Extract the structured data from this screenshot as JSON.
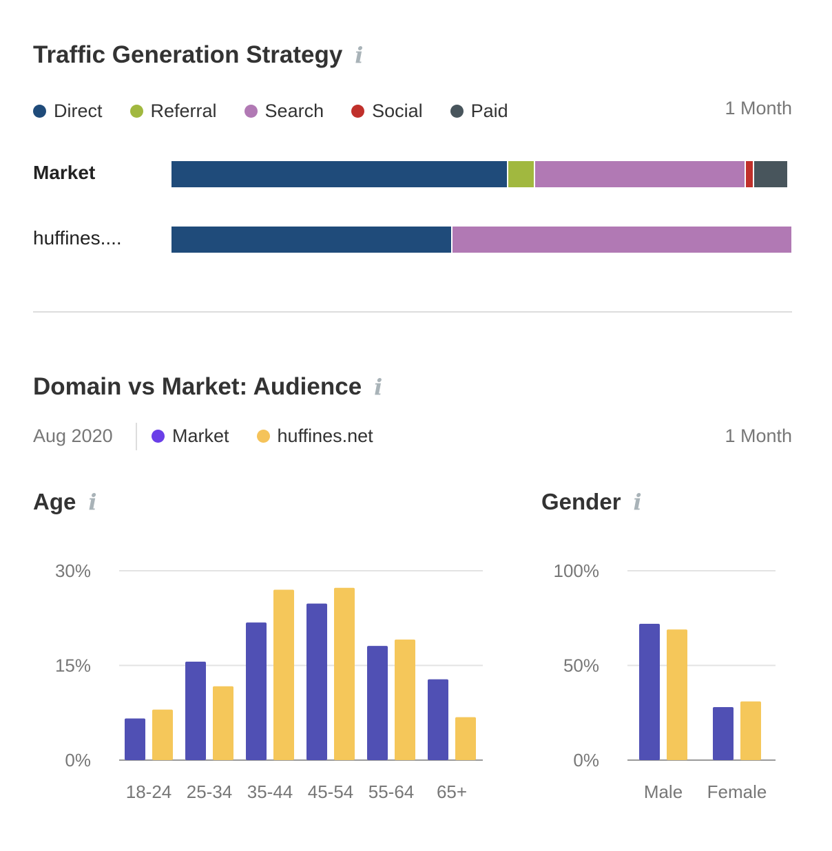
{
  "traffic": {
    "title": "Traffic Generation Strategy",
    "period": "1 Month",
    "legend": [
      {
        "label": "Direct",
        "color": "#1f4b7a"
      },
      {
        "label": "Referral",
        "color": "#a1b83f"
      },
      {
        "label": "Search",
        "color": "#b179b4"
      },
      {
        "label": "Social",
        "color": "#c0302b"
      },
      {
        "label": "Paid",
        "color": "#48555c"
      }
    ],
    "rows": [
      {
        "label": "Market",
        "shares": [
          54.3,
          4.4,
          34.0,
          1.3,
          5.3
        ]
      },
      {
        "label": "huffines....",
        "shares": [
          45.3,
          0,
          54.7,
          0,
          0
        ]
      }
    ]
  },
  "audience": {
    "title": "Domain vs Market: Audience",
    "date": "Aug 2020",
    "period": "1 Month",
    "legend": [
      {
        "label": "Market",
        "color": "#6a3fe8"
      },
      {
        "label": "huffines.net",
        "color": "#f5c35a"
      }
    ],
    "age_title": "Age",
    "gender_title": "Gender"
  },
  "chart_data": [
    {
      "type": "bar",
      "title": "Age",
      "categories": [
        "18-24",
        "25-34",
        "35-44",
        "45-54",
        "55-64",
        "65+"
      ],
      "series": [
        {
          "name": "Market",
          "color": "#5050b4",
          "values": [
            6.6,
            15.6,
            21.8,
            24.8,
            18.1,
            12.8
          ]
        },
        {
          "name": "huffines.net",
          "color": "#f5c75a",
          "values": [
            8.0,
            11.7,
            27.0,
            27.3,
            19.1,
            6.8
          ]
        }
      ],
      "ylim": [
        0,
        30
      ],
      "yticks": [
        "0%",
        "15%",
        "30%"
      ],
      "ytick_values": [
        0,
        15,
        30
      ],
      "grid": true
    },
    {
      "type": "bar",
      "title": "Gender",
      "categories": [
        "Male",
        "Female"
      ],
      "series": [
        {
          "name": "Market",
          "color": "#5050b4",
          "values": [
            72,
            28
          ]
        },
        {
          "name": "huffines.net",
          "color": "#f5c75a",
          "values": [
            69,
            31
          ]
        }
      ],
      "ylim": [
        0,
        100
      ],
      "yticks": [
        "0%",
        "50%",
        "100%"
      ],
      "ytick_values": [
        0,
        50,
        100
      ],
      "grid": true
    }
  ]
}
